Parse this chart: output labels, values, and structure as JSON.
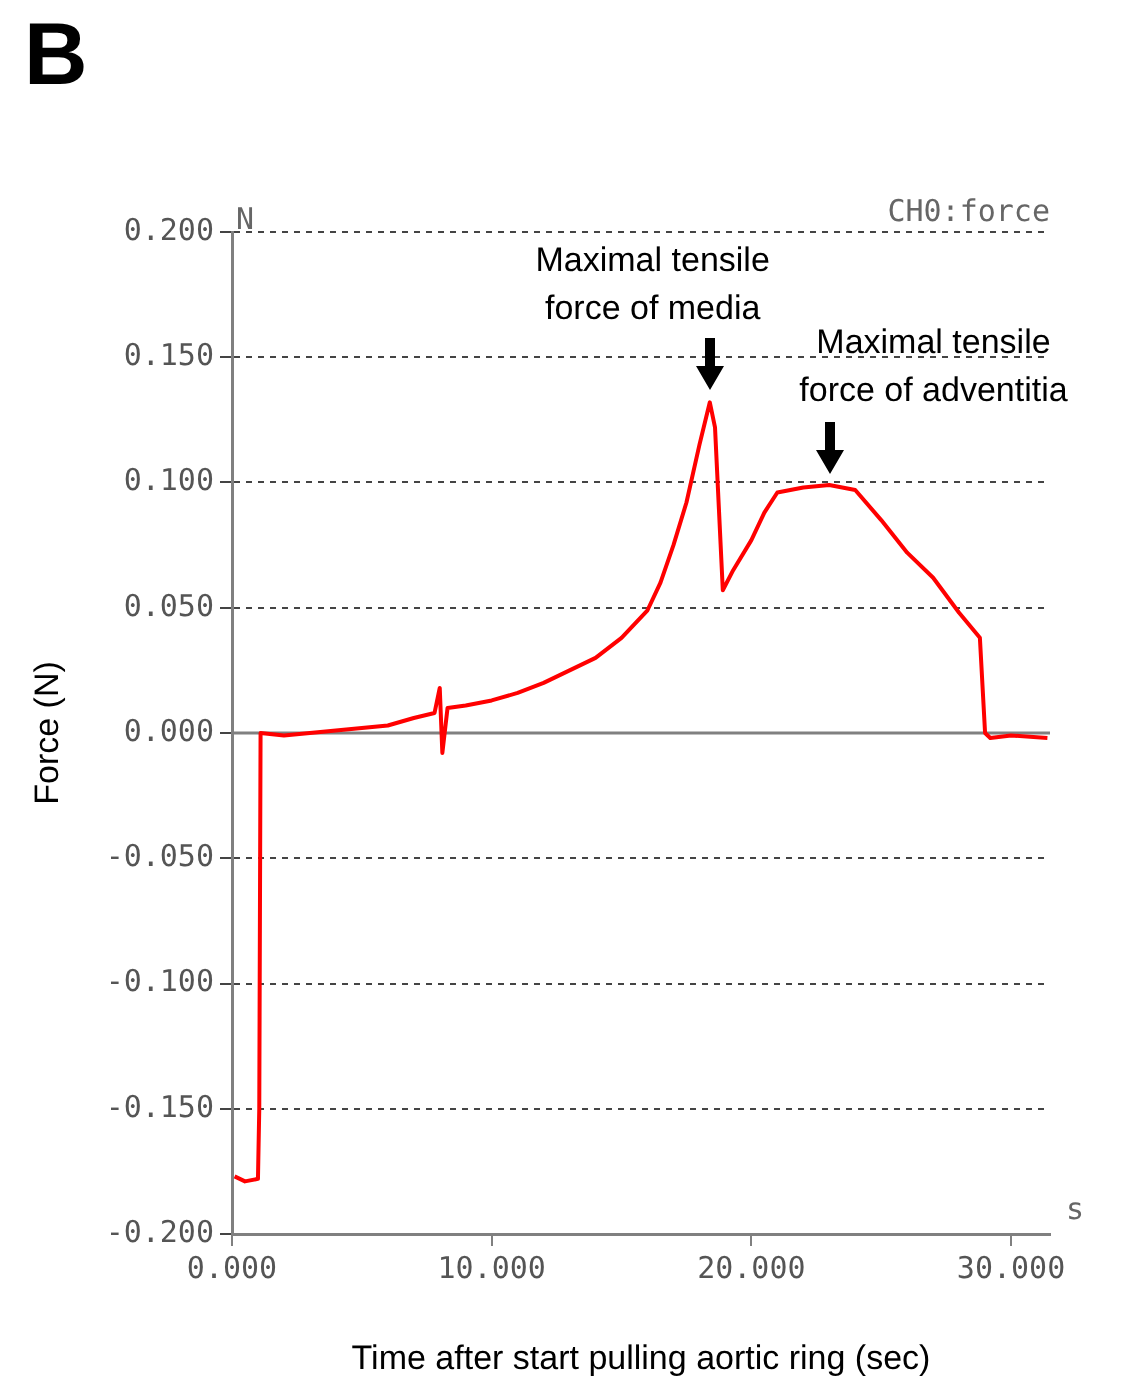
{
  "chart_data": {
    "type": "line",
    "title": "B",
    "xlabel": "Time after start pulling aortic ring (sec)",
    "ylabel": "Force (N)",
    "annotations": [
      "N",
      "s",
      "CH0:force",
      {
        "text": "Maximal tensile\nforce of media",
        "x": 18.4,
        "y": 0.132
      },
      {
        "text": "Maximal tensile\nforce of adventitia",
        "x": 23,
        "y": 0.099
      }
    ],
    "x": [
      0.1,
      0.5,
      1.0,
      1.05,
      1.1,
      2,
      3,
      4,
      5,
      6,
      7,
      7.8,
      8.0,
      8.1,
      8.3,
      9,
      10,
      11,
      12,
      13,
      14,
      15,
      16,
      16.5,
      17,
      17.5,
      18,
      18.4,
      18.6,
      18.9,
      19.3,
      20,
      20.5,
      21,
      22,
      23,
      24,
      25,
      26,
      27,
      28,
      28.8,
      29.0,
      29.2,
      30,
      31.4
    ],
    "series": [
      {
        "color": "#ff0000",
        "values": [
          -0.177,
          -0.179,
          -0.178,
          -0.15,
          0.0,
          -0.001,
          0.0,
          0.001,
          0.002,
          0.003,
          0.006,
          0.008,
          0.018,
          -0.008,
          0.01,
          0.011,
          0.013,
          0.016,
          0.02,
          0.025,
          0.03,
          0.038,
          0.049,
          0.06,
          0.075,
          0.092,
          0.115,
          0.132,
          0.122,
          0.057,
          0.065,
          0.077,
          0.088,
          0.096,
          0.098,
          0.099,
          0.097,
          0.085,
          0.072,
          0.062,
          0.048,
          0.038,
          0.0,
          -0.002,
          -0.001,
          -0.002
        ]
      }
    ],
    "xlim": [
      0,
      31.5
    ],
    "xticks": [
      {
        "value": 0,
        "label": "0.000"
      },
      {
        "value": 10,
        "label": "10.000"
      },
      {
        "value": 20,
        "label": "20.000"
      },
      {
        "value": 30,
        "label": "30.000"
      }
    ],
    "ylim": [
      -0.2,
      0.2
    ],
    "yticks": [
      {
        "value": -0.2,
        "label": "-0.200"
      },
      {
        "value": -0.15,
        "label": "-0.150"
      },
      {
        "value": -0.1,
        "label": "-0.100"
      },
      {
        "value": -0.05,
        "label": "-0.050"
      },
      {
        "value": 0,
        "label": "0.000"
      },
      {
        "value": 0.05,
        "label": "0.050"
      },
      {
        "value": 0.1,
        "label": "0.100"
      },
      {
        "value": 0.15,
        "label": "0.150"
      },
      {
        "value": 0.2,
        "label": "0.200"
      }
    ],
    "grid": "y",
    "legend": false,
    "marker": "none",
    "line_style": "solid",
    "ref_lines": [
      {
        "axis": "y",
        "value": 0,
        "color": "#808080",
        "line_style": "solid"
      }
    ]
  }
}
